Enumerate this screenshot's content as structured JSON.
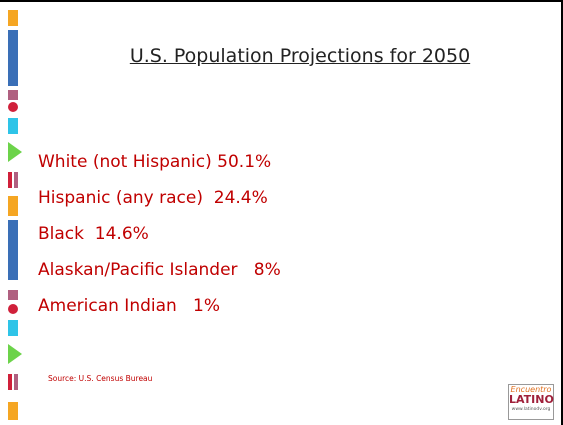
{
  "title": "U.S. Population Projections for 2050",
  "items": [
    "White (not Hispanic) 50.1%",
    "Hispanic (any race)  24.4%",
    "Black  14.6%",
    "Alaskan/Pacific Islander   8%",
    "American Indian   1%"
  ],
  "source": "Source: U.S. Census Bureau",
  "logo": {
    "top": "Encuentro",
    "name": "LATINO",
    "url": "www.latinodv.org"
  }
}
